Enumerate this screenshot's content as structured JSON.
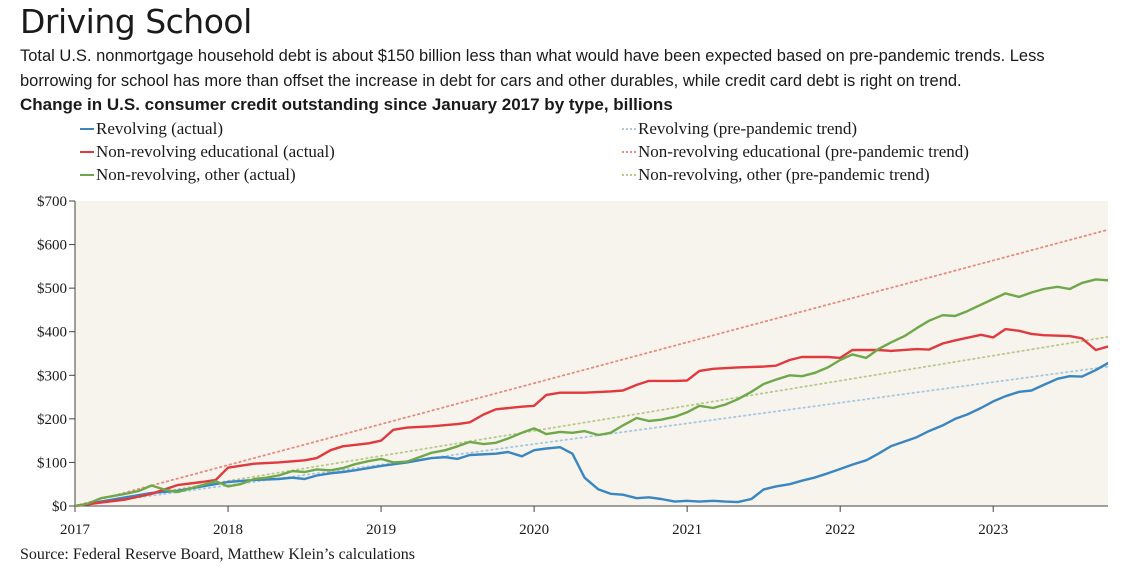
{
  "title": "Driving School",
  "subtitle": "Total U.S. nonmortgage household debt is about $150 billion less than what would have been expected based on pre-pandemic trends. Less borrowing for school has more than offset the increase in debt for cars and other durables, while credit card debt is right on trend.",
  "chart_heading": "Change in U.S. consumer credit outstanding since January 2017 by type, billions",
  "source": "Source: Federal Reserve Board, Matthew Klein’s calculations",
  "chart_data": {
    "type": "line",
    "title": "Change in U.S. consumer credit outstanding since January 2017 by type, billions",
    "xlabel": "",
    "ylabel": "",
    "x_range": [
      2017.0,
      2023.75
    ],
    "ylim": [
      0,
      700
    ],
    "y_ticks": [
      0,
      100,
      200,
      300,
      400,
      500,
      600,
      700
    ],
    "y_tick_labels": [
      "$0",
      "$100",
      "$200",
      "$300",
      "$400",
      "$500",
      "$600",
      "$700"
    ],
    "x_ticks": [
      2017,
      2018,
      2019,
      2020,
      2021,
      2022,
      2023
    ],
    "x_tick_labels": [
      "2017",
      "2018",
      "2019",
      "2020",
      "2021",
      "2022",
      "2023"
    ],
    "grid": false,
    "background": "#f7f4ee",
    "legend_placement": "top, two columns",
    "series": [
      {
        "name": "Revolving (actual)",
        "style": "solid",
        "color": "#3a86c0",
        "points": [
          [
            2017.0,
            0
          ],
          [
            2017.17,
            10
          ],
          [
            2017.33,
            20
          ],
          [
            2017.5,
            30
          ],
          [
            2017.67,
            35
          ],
          [
            2017.83,
            45
          ],
          [
            2018.0,
            55
          ],
          [
            2018.17,
            60
          ],
          [
            2018.33,
            62
          ],
          [
            2018.42,
            65
          ],
          [
            2018.5,
            62
          ],
          [
            2018.58,
            70
          ],
          [
            2018.67,
            75
          ],
          [
            2018.75,
            78
          ],
          [
            2018.83,
            82
          ],
          [
            2019.0,
            92
          ],
          [
            2019.17,
            100
          ],
          [
            2019.33,
            110
          ],
          [
            2019.42,
            112
          ],
          [
            2019.5,
            108
          ],
          [
            2019.58,
            117
          ],
          [
            2019.75,
            120
          ],
          [
            2019.83,
            124
          ],
          [
            2019.92,
            114
          ],
          [
            2020.0,
            128
          ],
          [
            2020.08,
            132
          ],
          [
            2020.17,
            135
          ],
          [
            2020.25,
            120
          ],
          [
            2020.33,
            65
          ],
          [
            2020.42,
            38
          ],
          [
            2020.5,
            28
          ],
          [
            2020.58,
            26
          ],
          [
            2020.67,
            18
          ],
          [
            2020.75,
            20
          ],
          [
            2020.83,
            16
          ],
          [
            2020.92,
            10
          ],
          [
            2021.0,
            12
          ],
          [
            2021.08,
            10
          ],
          [
            2021.17,
            12
          ],
          [
            2021.25,
            10
          ],
          [
            2021.33,
            9
          ],
          [
            2021.42,
            16
          ],
          [
            2021.5,
            38
          ],
          [
            2021.58,
            45
          ],
          [
            2021.67,
            50
          ],
          [
            2021.75,
            58
          ],
          [
            2021.83,
            65
          ],
          [
            2021.92,
            75
          ],
          [
            2022.0,
            85
          ],
          [
            2022.08,
            95
          ],
          [
            2022.17,
            105
          ],
          [
            2022.25,
            120
          ],
          [
            2022.33,
            137
          ],
          [
            2022.42,
            148
          ],
          [
            2022.5,
            158
          ],
          [
            2022.58,
            172
          ],
          [
            2022.67,
            185
          ],
          [
            2022.75,
            200
          ],
          [
            2022.83,
            210
          ],
          [
            2022.92,
            225
          ],
          [
            2023.0,
            240
          ],
          [
            2023.08,
            252
          ],
          [
            2023.17,
            262
          ],
          [
            2023.25,
            265
          ],
          [
            2023.33,
            278
          ],
          [
            2023.42,
            292
          ],
          [
            2023.5,
            298
          ],
          [
            2023.58,
            297
          ],
          [
            2023.67,
            312
          ],
          [
            2023.75,
            328
          ],
          [
            2023.83,
            332
          ],
          [
            2023.92,
            333
          ]
        ]
      },
      {
        "name": "Non-revolving educational (actual)",
        "style": "solid",
        "color": "#e0393e",
        "points": [
          [
            2017.0,
            0
          ],
          [
            2017.17,
            8
          ],
          [
            2017.33,
            15
          ],
          [
            2017.5,
            28
          ],
          [
            2017.67,
            48
          ],
          [
            2017.83,
            55
          ],
          [
            2017.92,
            60
          ],
          [
            2018.0,
            88
          ],
          [
            2018.17,
            97
          ],
          [
            2018.33,
            100
          ],
          [
            2018.5,
            105
          ],
          [
            2018.58,
            110
          ],
          [
            2018.67,
            128
          ],
          [
            2018.75,
            137
          ],
          [
            2018.92,
            144
          ],
          [
            2019.0,
            150
          ],
          [
            2019.08,
            175
          ],
          [
            2019.17,
            180
          ],
          [
            2019.33,
            183
          ],
          [
            2019.5,
            188
          ],
          [
            2019.58,
            192
          ],
          [
            2019.67,
            210
          ],
          [
            2019.75,
            222
          ],
          [
            2019.92,
            228
          ],
          [
            2020.0,
            230
          ],
          [
            2020.08,
            255
          ],
          [
            2020.17,
            260
          ],
          [
            2020.33,
            260
          ],
          [
            2020.5,
            263
          ],
          [
            2020.58,
            265
          ],
          [
            2020.67,
            278
          ],
          [
            2020.75,
            287
          ],
          [
            2020.92,
            287
          ],
          [
            2021.0,
            288
          ],
          [
            2021.08,
            310
          ],
          [
            2021.17,
            315
          ],
          [
            2021.33,
            318
          ],
          [
            2021.5,
            320
          ],
          [
            2021.58,
            322
          ],
          [
            2021.67,
            335
          ],
          [
            2021.75,
            342
          ],
          [
            2021.92,
            342
          ],
          [
            2022.0,
            340
          ],
          [
            2022.08,
            358
          ],
          [
            2022.25,
            358
          ],
          [
            2022.33,
            356
          ],
          [
            2022.5,
            360
          ],
          [
            2022.58,
            359
          ],
          [
            2022.67,
            373
          ],
          [
            2022.75,
            380
          ],
          [
            2022.92,
            393
          ],
          [
            2023.0,
            387
          ],
          [
            2023.08,
            406
          ],
          [
            2023.17,
            402
          ],
          [
            2023.25,
            395
          ],
          [
            2023.33,
            392
          ],
          [
            2023.5,
            390
          ],
          [
            2023.58,
            385
          ],
          [
            2023.67,
            358
          ],
          [
            2023.75,
            366
          ],
          [
            2023.92,
            364
          ]
        ]
      },
      {
        "name": "Non-revolving, other (actual)",
        "style": "solid",
        "color": "#6fa84a",
        "points": [
          [
            2017.0,
            0
          ],
          [
            2017.08,
            5
          ],
          [
            2017.17,
            18
          ],
          [
            2017.33,
            28
          ],
          [
            2017.42,
            35
          ],
          [
            2017.5,
            47
          ],
          [
            2017.58,
            38
          ],
          [
            2017.67,
            32
          ],
          [
            2017.83,
            48
          ],
          [
            2017.92,
            57
          ],
          [
            2018.0,
            45
          ],
          [
            2018.08,
            50
          ],
          [
            2018.17,
            62
          ],
          [
            2018.25,
            65
          ],
          [
            2018.33,
            70
          ],
          [
            2018.42,
            80
          ],
          [
            2018.5,
            78
          ],
          [
            2018.58,
            84
          ],
          [
            2018.67,
            82
          ],
          [
            2018.75,
            87
          ],
          [
            2018.83,
            96
          ],
          [
            2018.92,
            103
          ],
          [
            2019.0,
            108
          ],
          [
            2019.08,
            100
          ],
          [
            2019.17,
            102
          ],
          [
            2019.25,
            112
          ],
          [
            2019.33,
            122
          ],
          [
            2019.42,
            128
          ],
          [
            2019.5,
            137
          ],
          [
            2019.58,
            147
          ],
          [
            2019.67,
            142
          ],
          [
            2019.75,
            145
          ],
          [
            2019.83,
            155
          ],
          [
            2019.92,
            168
          ],
          [
            2020.0,
            178
          ],
          [
            2020.08,
            165
          ],
          [
            2020.17,
            170
          ],
          [
            2020.25,
            168
          ],
          [
            2020.33,
            172
          ],
          [
            2020.42,
            163
          ],
          [
            2020.5,
            168
          ],
          [
            2020.58,
            185
          ],
          [
            2020.67,
            202
          ],
          [
            2020.75,
            195
          ],
          [
            2020.83,
            198
          ],
          [
            2020.92,
            205
          ],
          [
            2021.0,
            215
          ],
          [
            2021.08,
            230
          ],
          [
            2021.17,
            225
          ],
          [
            2021.25,
            233
          ],
          [
            2021.33,
            245
          ],
          [
            2021.42,
            262
          ],
          [
            2021.5,
            280
          ],
          [
            2021.58,
            290
          ],
          [
            2021.67,
            300
          ],
          [
            2021.75,
            298
          ],
          [
            2021.83,
            305
          ],
          [
            2021.92,
            318
          ],
          [
            2022.0,
            335
          ],
          [
            2022.08,
            348
          ],
          [
            2022.17,
            340
          ],
          [
            2022.25,
            360
          ],
          [
            2022.33,
            375
          ],
          [
            2022.42,
            390
          ],
          [
            2022.5,
            408
          ],
          [
            2022.58,
            425
          ],
          [
            2022.67,
            438
          ],
          [
            2022.75,
            436
          ],
          [
            2022.83,
            447
          ],
          [
            2022.92,
            462
          ],
          [
            2023.0,
            475
          ],
          [
            2023.08,
            488
          ],
          [
            2023.17,
            480
          ],
          [
            2023.25,
            490
          ],
          [
            2023.33,
            498
          ],
          [
            2023.42,
            503
          ],
          [
            2023.5,
            498
          ],
          [
            2023.58,
            512
          ],
          [
            2023.67,
            520
          ],
          [
            2023.75,
            518
          ],
          [
            2023.83,
            518
          ],
          [
            2023.92,
            522
          ]
        ]
      },
      {
        "name": "Revolving (pre-pandemic trend)",
        "style": "dotted",
        "color": "#a6c8e0",
        "points": [
          [
            2017.0,
            0
          ],
          [
            2023.92,
            328
          ]
        ]
      },
      {
        "name": "Non-revolving educational (pre-pandemic trend)",
        "style": "dotted",
        "color": "#e88a7c",
        "points": [
          [
            2017.0,
            0
          ],
          [
            2023.92,
            650
          ]
        ]
      },
      {
        "name": "Non-revolving, other (pre-pandemic trend)",
        "style": "dotted",
        "color": "#b8c98a",
        "points": [
          [
            2017.0,
            0
          ],
          [
            2023.92,
            398
          ]
        ]
      }
    ]
  }
}
